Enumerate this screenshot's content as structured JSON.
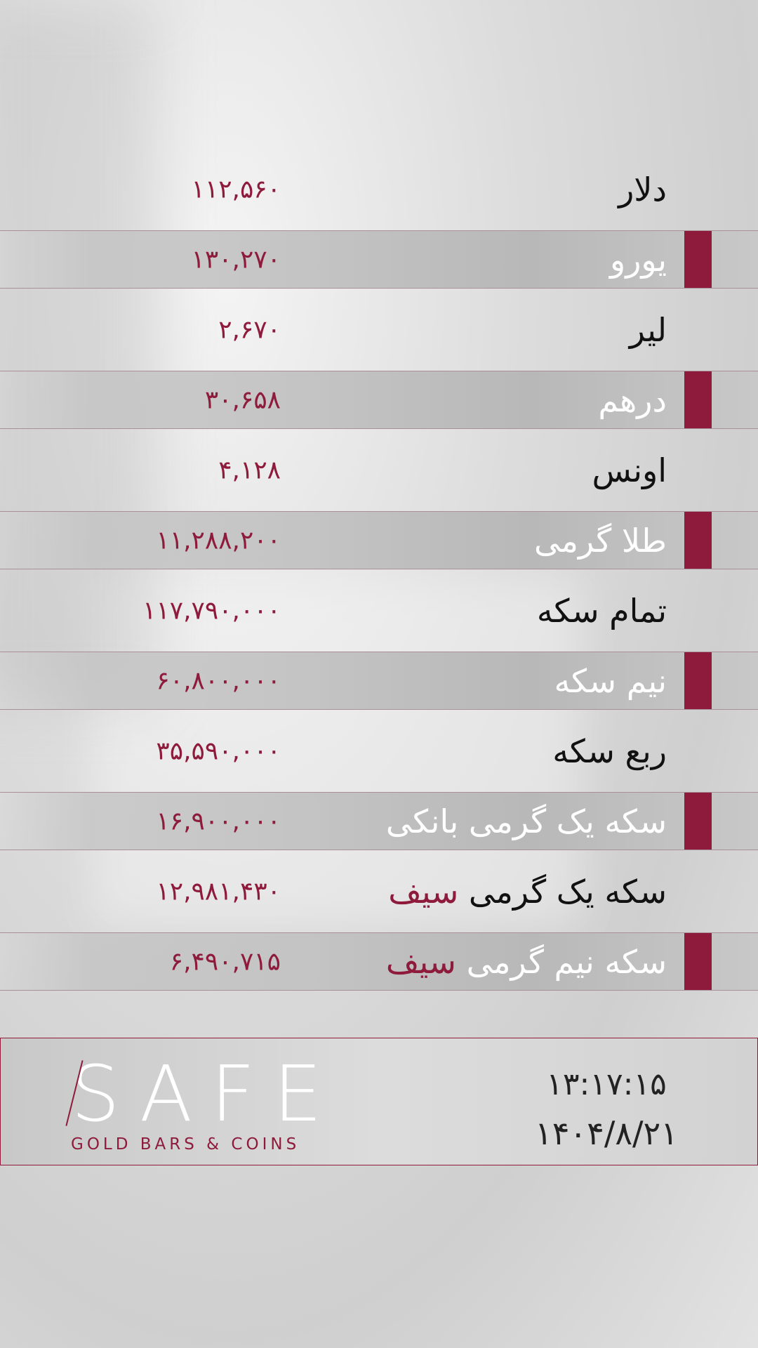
{
  "colors": {
    "accent": "#8e1b3c"
  },
  "rates": [
    {
      "label": "دلار",
      "value": "۱۱۲,۵۶۰"
    },
    {
      "label": "یورو",
      "value": "۱۳۰,۲۷۰"
    },
    {
      "label": "لیر",
      "value": "۲,۶۷۰"
    },
    {
      "label": "درهم",
      "value": "۳۰,۶۵۸"
    },
    {
      "label": "اونس",
      "value": "۴,۱۲۸"
    },
    {
      "label": "طلا گرمی",
      "value": "۱۱,۲۸۸,۲۰۰"
    },
    {
      "label": "تمام سکه",
      "value": "۱۱۷,۷۹۰,۰۰۰"
    },
    {
      "label": "نیم سکه",
      "value": "۶۰,۸۰۰,۰۰۰"
    },
    {
      "label": "ربع سکه",
      "value": "۳۵,۵۹۰,۰۰۰"
    },
    {
      "label": "سکه یک گرمی بانکی",
      "value": "۱۶,۹۰۰,۰۰۰"
    },
    {
      "label": "سکه یک گرمی",
      "accent": "سیف",
      "value": "۱۲,۹۸۱,۴۳۰"
    },
    {
      "label": "سکه نیم گرمی",
      "accent": "سیف",
      "value": "۶,۴۹۰,۷۱۵"
    }
  ],
  "footer": {
    "logo": "SAFE",
    "tagline": "GOLD BARS & COINS",
    "time": "۱۳:۱۷:۱۵",
    "date": "۱۴۰۴/۸/۲۱"
  }
}
